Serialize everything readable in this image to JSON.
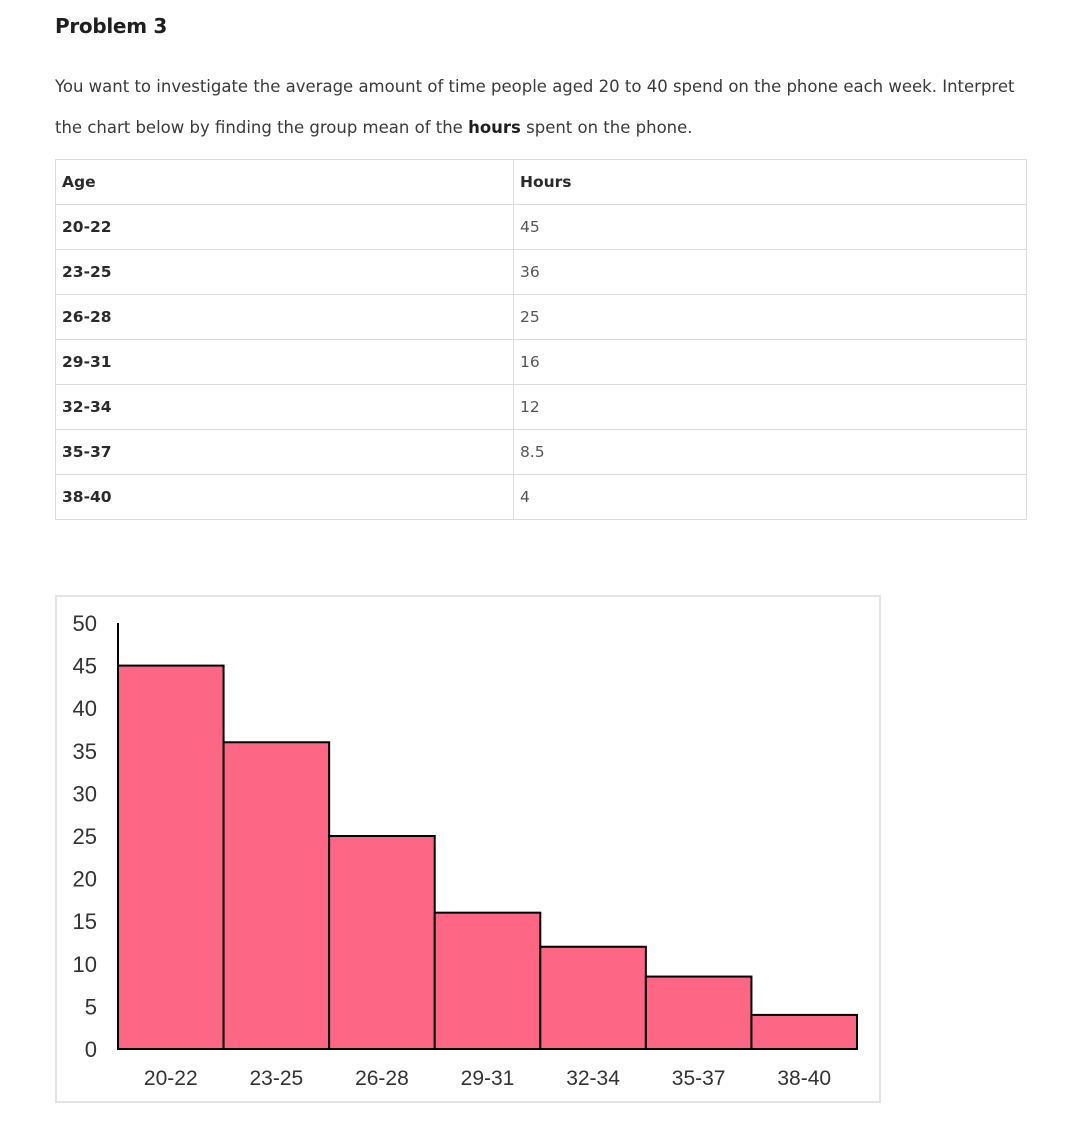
{
  "title": "Problem 3",
  "intro": {
    "part1": "You want to investigate the average amount of time people aged 20 to 40 spend on the phone each week. Interpret the chart below by finding the group mean of the ",
    "bold": "hours",
    "part2": " spent on the phone."
  },
  "table": {
    "headers": [
      "Age",
      "Hours"
    ],
    "rows": [
      {
        "age": "20-22",
        "hours": "45"
      },
      {
        "age": "23-25",
        "hours": "36"
      },
      {
        "age": "26-28",
        "hours": "25"
      },
      {
        "age": "29-31",
        "hours": "16"
      },
      {
        "age": "32-34",
        "hours": "12"
      },
      {
        "age": "35-37",
        "hours": "8.5"
      },
      {
        "age": "38-40",
        "hours": "4"
      }
    ]
  },
  "chart_data": {
    "type": "bar",
    "categories": [
      "20-22",
      "23-25",
      "26-28",
      "29-31",
      "32-34",
      "35-37",
      "38-40"
    ],
    "values": [
      45,
      36,
      25,
      16,
      12,
      8.5,
      4
    ],
    "ylim": [
      0,
      50
    ],
    "yticks": [
      "50",
      "45",
      "40",
      "35",
      "30",
      "25",
      "20",
      "15",
      "10",
      "5",
      "0"
    ],
    "bar_color": "#fd6685",
    "bar_outline": "#000000",
    "grid": false
  }
}
